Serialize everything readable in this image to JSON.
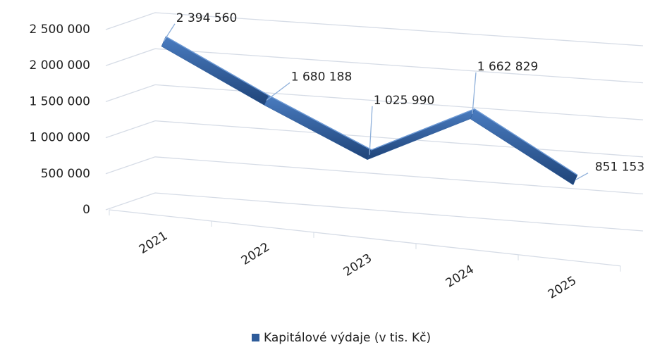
{
  "chart_data": {
    "type": "line3d",
    "categories": [
      "2021",
      "2022",
      "2023",
      "2024",
      "2025"
    ],
    "series": [
      {
        "name": "Kapitálové výdaje (v tis. Kč)",
        "color": "#2e5c9a",
        "values": [
          2394560,
          1680188,
          1025990,
          1662829,
          851153
        ],
        "value_labels": [
          "2 394 560",
          "1 680 188",
          "1 025 990",
          "1 662 829",
          "851 153"
        ]
      }
    ],
    "ylim": [
      0,
      2500000
    ],
    "yticks": [
      0,
      {
        "value": 500000,
        "label": "500 000"
      },
      {
        "value": 1000000,
        "label": "1 000 000"
      },
      {
        "value": 1500000,
        "label": "1 500 000"
      },
      {
        "value": 2000000,
        "label": "2 000 000"
      },
      {
        "value": 2500000,
        "label": "2 500 000"
      }
    ],
    "grid": true,
    "legend": "bottom"
  }
}
